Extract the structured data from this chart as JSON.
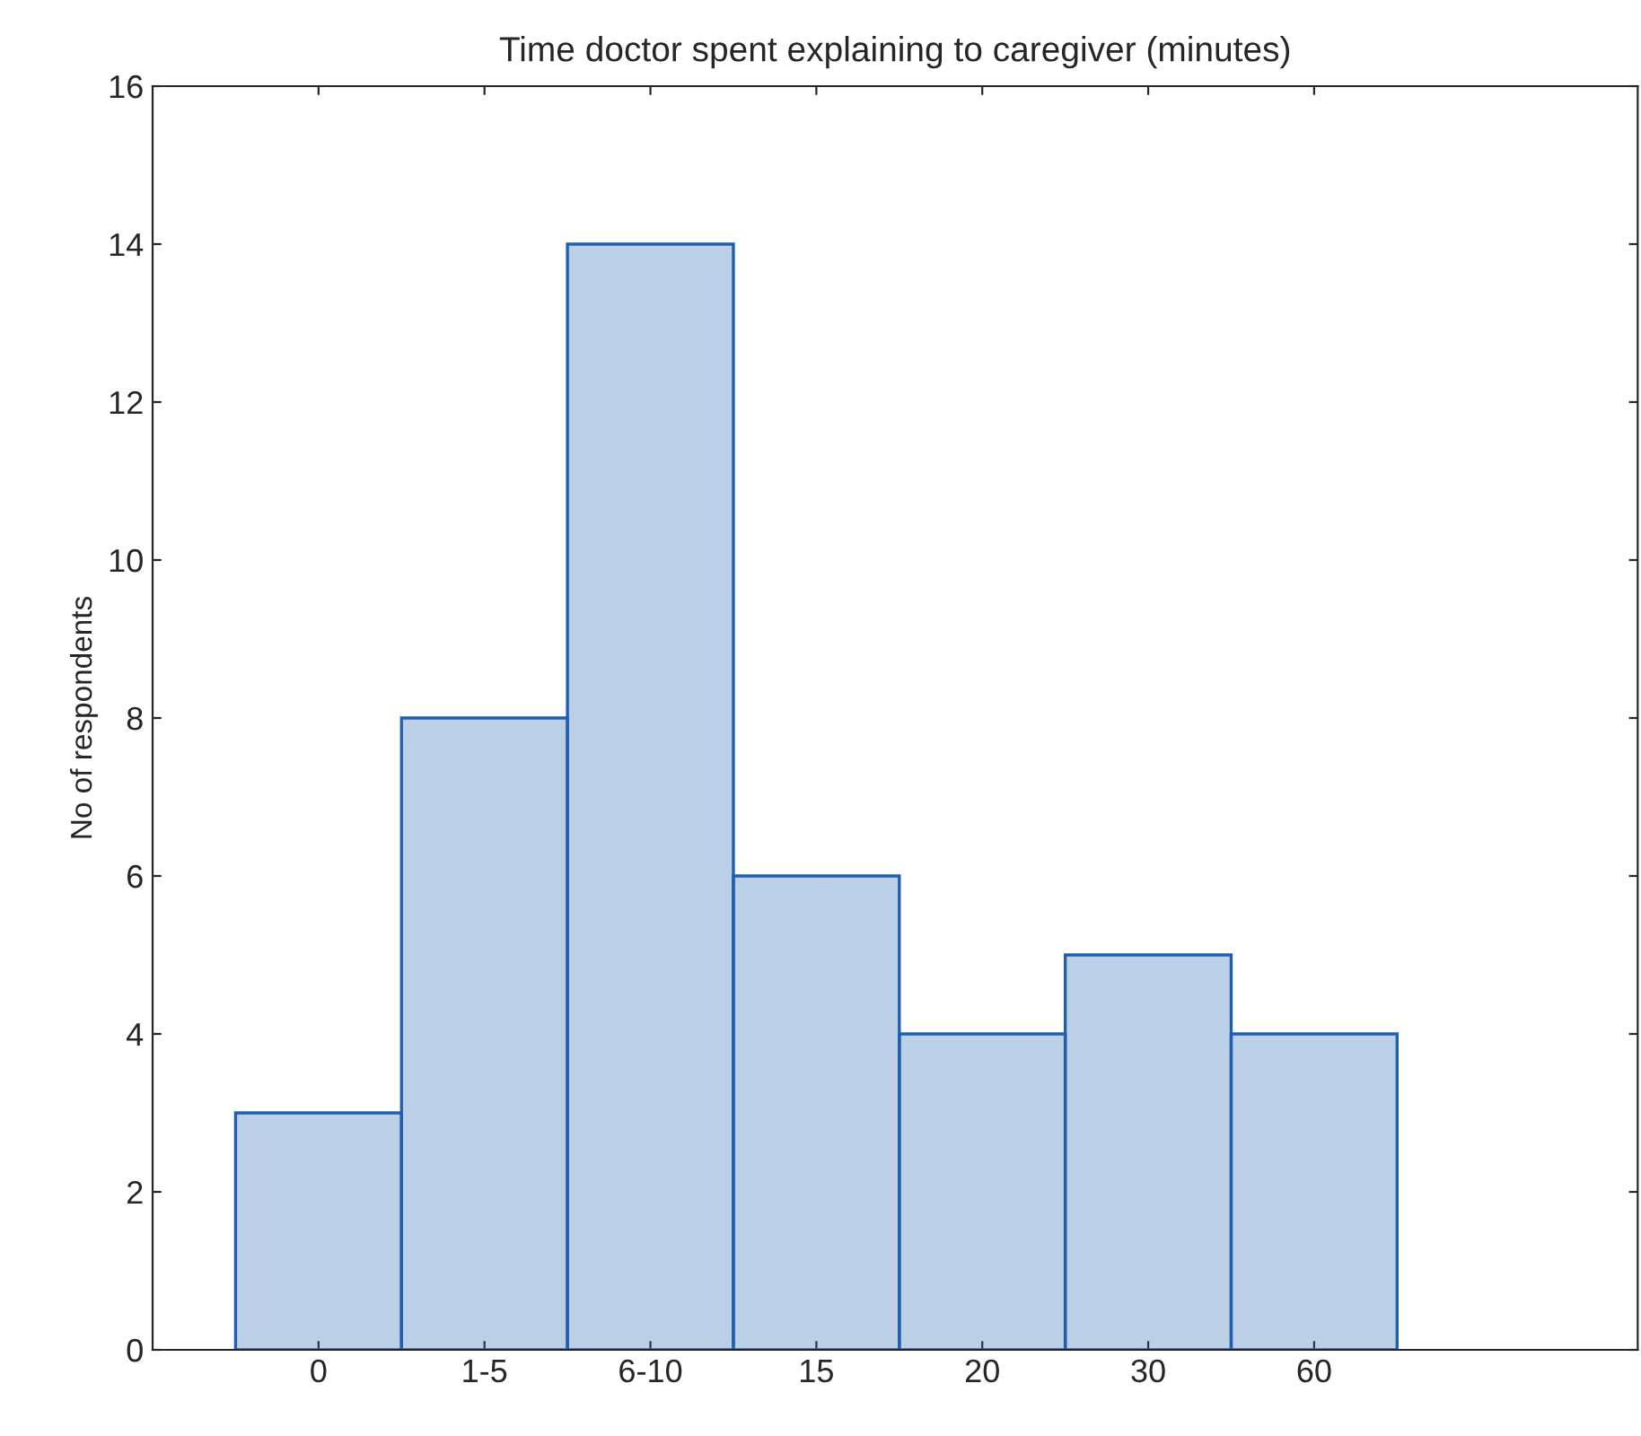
{
  "chart_data": {
    "type": "bar",
    "title": "Time doctor spent explaining to caregiver (minutes)",
    "ylabel": "No of respondents",
    "categories": [
      "0",
      "1-5",
      "6-10",
      "15",
      "20",
      "30",
      "60"
    ],
    "values": [
      3,
      8,
      14,
      6,
      4,
      5,
      4
    ],
    "color": "#1f5fb0",
    "ylim": [
      0,
      16
    ],
    "yticks": [
      0,
      2,
      4,
      6,
      8,
      10,
      12,
      14,
      16
    ],
    "grid": false
  }
}
